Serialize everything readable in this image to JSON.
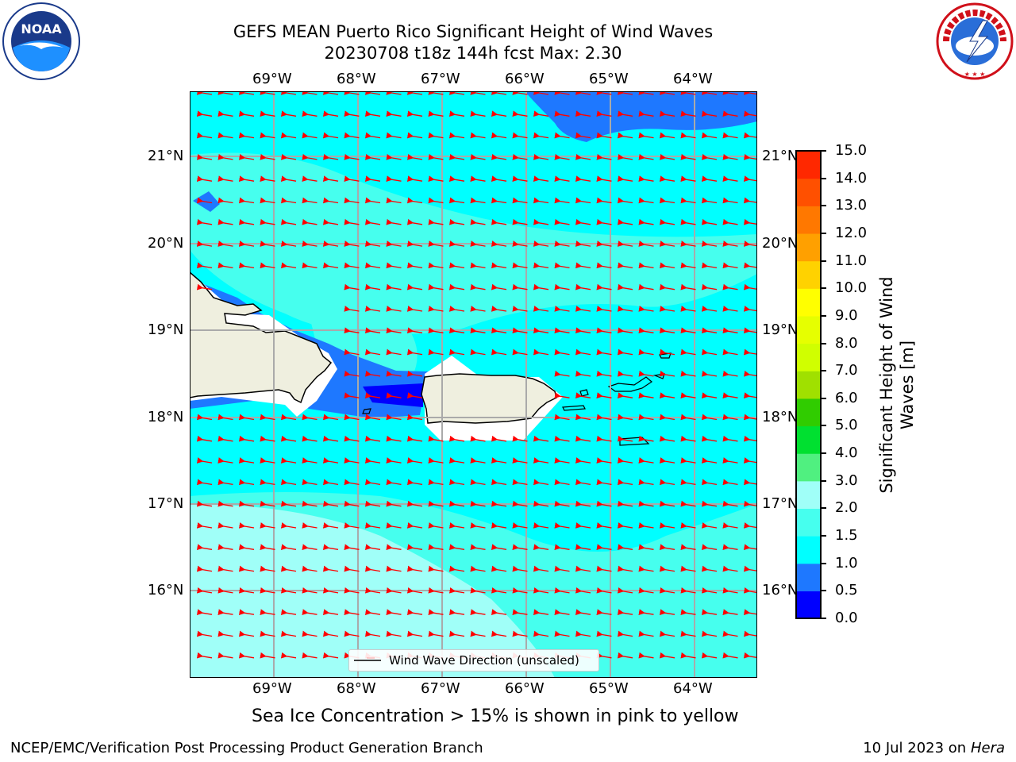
{
  "title": {
    "line1": "GEFS MEAN Puerto Rico Significant Height of Wind Waves",
    "line2": "20230708 t18z 144h fcst   Max: 2.30"
  },
  "logos": {
    "left": "NOAA",
    "right": "NATIONAL WEATHER SERVICE"
  },
  "axes": {
    "lon_ticks": [
      "69°W",
      "68°W",
      "67°W",
      "66°W",
      "65°W",
      "64°W"
    ],
    "lat_ticks": [
      "21°N",
      "20°N",
      "19°N",
      "18°N",
      "17°N",
      "16°N"
    ]
  },
  "legend": {
    "label": "Wind Wave Direction (unscaled)"
  },
  "colorbar": {
    "label": "Significant Height of Wind Waves [m]",
    "ticks": [
      "0.0",
      "0.5",
      "1.0",
      "1.5",
      "2.0",
      "3.0",
      "4.0",
      "5.0",
      "6.0",
      "7.0",
      "8.0",
      "9.0",
      "10.0",
      "11.0",
      "12.0",
      "13.0",
      "14.0",
      "15.0"
    ],
    "colors": [
      "#0000ff",
      "#1e78ff",
      "#00ffff",
      "#46ffee",
      "#a0fff8",
      "#50f080",
      "#00e030",
      "#30cc00",
      "#a0e000",
      "#d0ff00",
      "#e6ff00",
      "#ffff00",
      "#ffd200",
      "#ffa000",
      "#ff7800",
      "#ff5000",
      "#ff2800",
      "#ff0000"
    ]
  },
  "colors": {
    "land": "#efefdf",
    "arrow": "#ff0000",
    "grid": "#aaaaaa"
  },
  "note": "Sea Ice Concentration > 15% is shown in pink to yellow",
  "footer": {
    "left": "NCEP/EMC/Verification Post Processing Product Generation Branch",
    "date": "10 Jul 2023 on ",
    "machine": "Hera"
  }
}
